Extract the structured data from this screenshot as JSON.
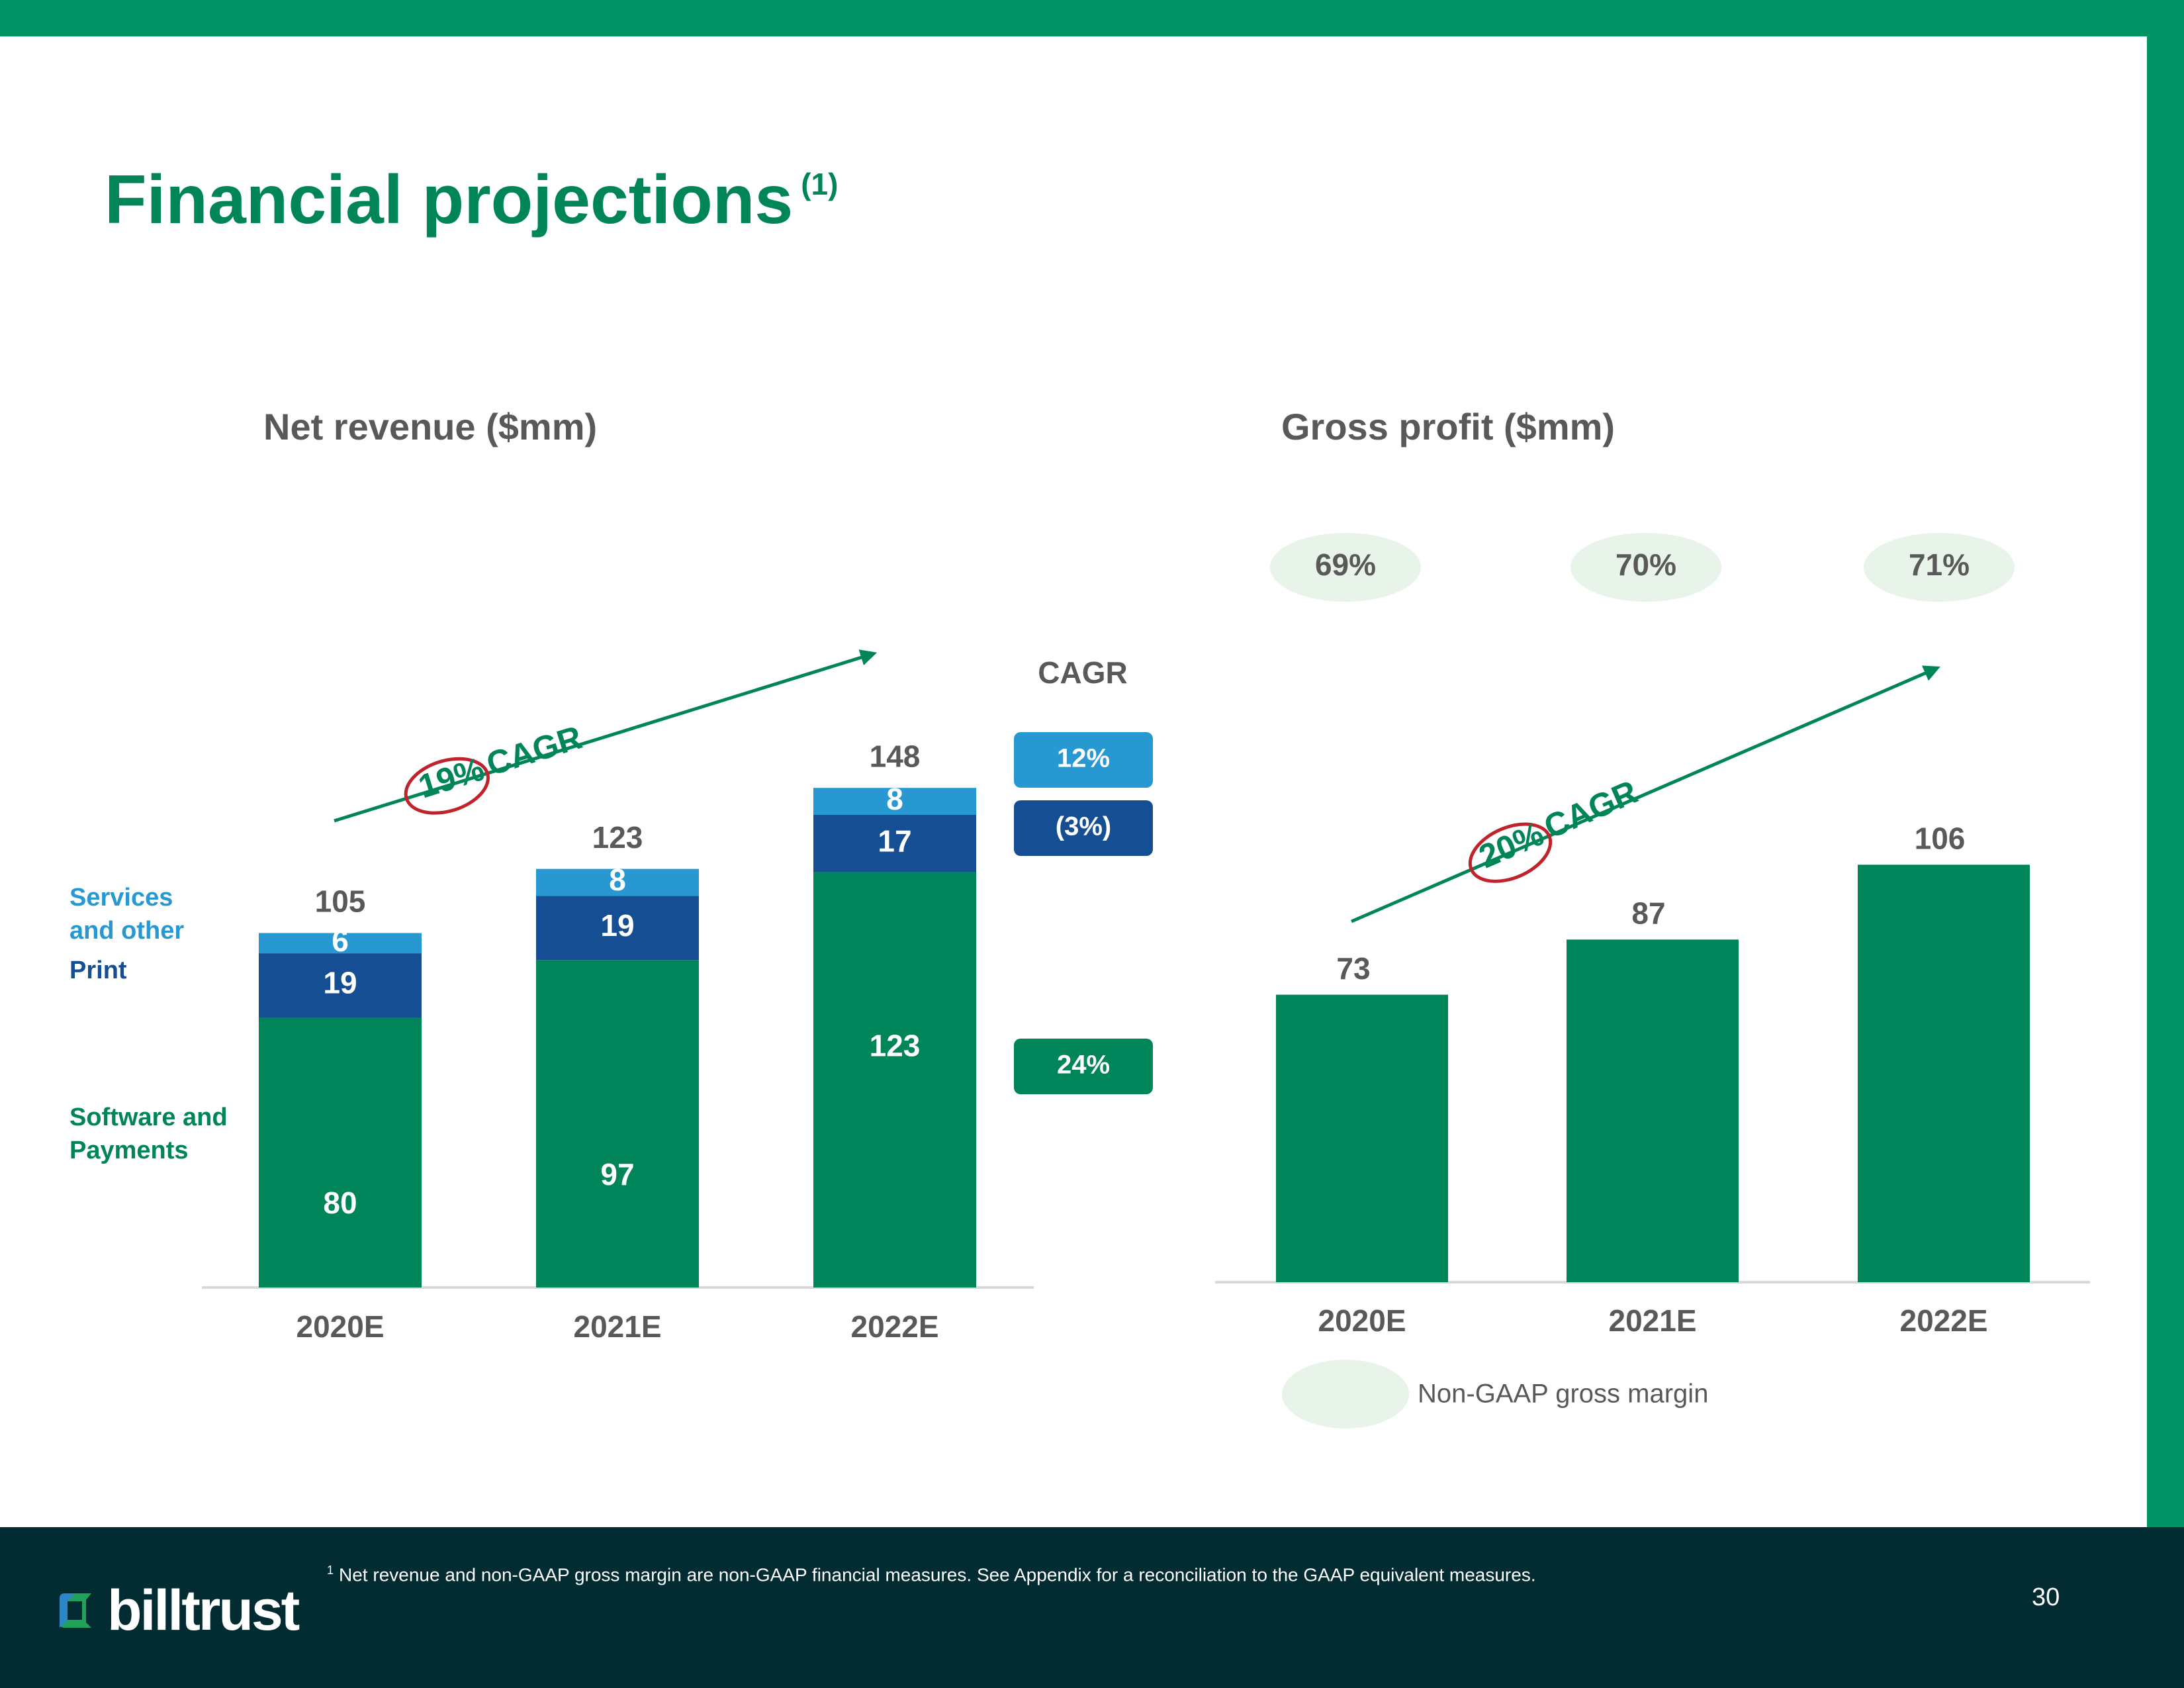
{
  "title": "Financial projections",
  "title_note": "(1)",
  "colors": {
    "brand_green": "#00845a",
    "print_blue": "#154e92",
    "services_blue": "#2898d3",
    "margin_pill": "#e8f3ea",
    "cagr_arrow": "#00845a",
    "cagr_ring": "#c0232b",
    "footer_bg": "#022c32"
  },
  "chart_data": [
    {
      "type": "bar",
      "stacked": true,
      "title": "Net revenue ($mm)",
      "categories": [
        "2020E",
        "2021E",
        "2022E"
      ],
      "series": [
        {
          "name": "Software and Payments",
          "values": [
            80,
            97,
            123
          ],
          "color": "#00845a",
          "cagr": "24%"
        },
        {
          "name": "Print",
          "values": [
            19,
            19,
            17
          ],
          "color": "#154e92",
          "cagr": "(3%)"
        },
        {
          "name": "Services and other",
          "values": [
            6,
            8,
            8
          ],
          "color": "#2898d3",
          "cagr": "12%"
        }
      ],
      "totals": [
        105,
        123,
        148
      ],
      "cagr_header": "CAGR",
      "annotation": {
        "pct": "19%",
        "label": "CAGR"
      },
      "legend_labels": {
        "services": [
          "Services",
          "and other"
        ],
        "print": "Print",
        "software": [
          "Software and",
          "Payments"
        ]
      },
      "ylim": [
        0,
        160
      ]
    },
    {
      "type": "bar",
      "title": "Gross profit ($mm)",
      "categories": [
        "2020E",
        "2021E",
        "2022E"
      ],
      "values": [
        73,
        87,
        106
      ],
      "margins": [
        "69%",
        "70%",
        "71%"
      ],
      "margin_legend": "Non-GAAP gross margin",
      "annotation": {
        "pct": "20%",
        "label": "CAGR"
      },
      "ylim": [
        0,
        130
      ]
    }
  ],
  "footer": {
    "logo_text": "billtrust",
    "footnote_marker": "1",
    "footnote": "Net revenue and non-GAAP gross margin are non-GAAP financial measures. See Appendix for a reconciliation to the GAAP equivalent measures.",
    "page_number": "30"
  }
}
